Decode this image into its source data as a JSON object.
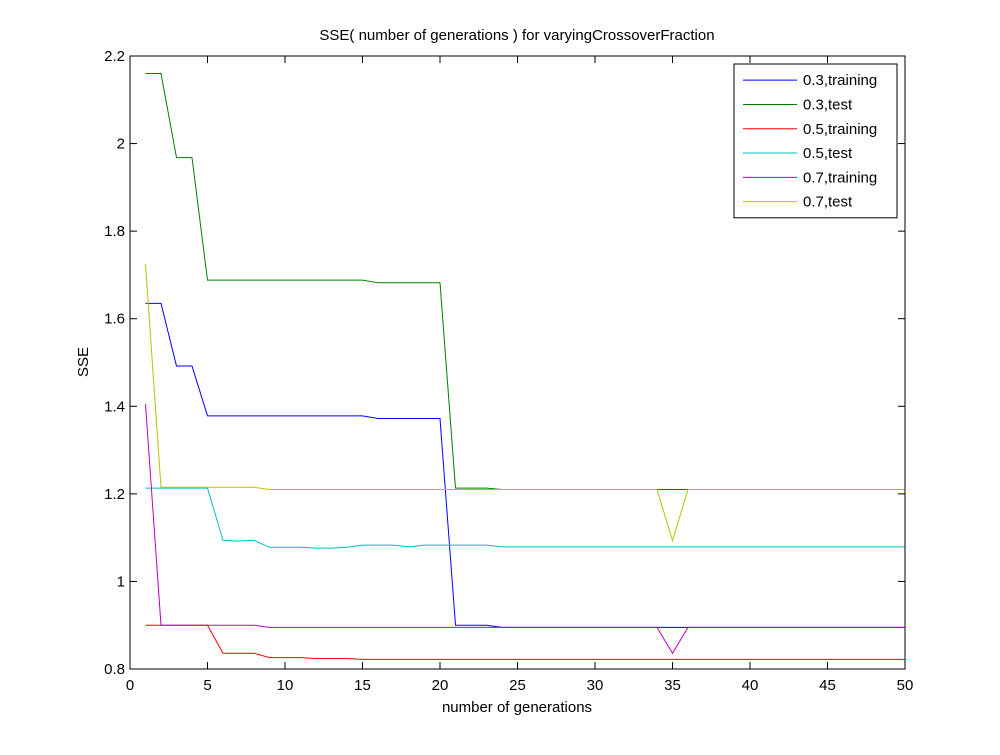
{
  "chart_data": {
    "type": "line",
    "title": "SSE( number of generations ) for varyingCrossoverFraction",
    "xlabel": "number of generations",
    "ylabel": "SSE",
    "xlim": [
      0,
      50
    ],
    "ylim": [
      0.8,
      2.2
    ],
    "xticks": [
      0,
      5,
      10,
      15,
      20,
      25,
      30,
      35,
      40,
      45,
      50
    ],
    "yticks": [
      0.8,
      1,
      1.2,
      1.4,
      1.6,
      1.8,
      2,
      2.2
    ],
    "xtick_labels": [
      "0",
      "5",
      "10",
      "15",
      "20",
      "25",
      "30",
      "35",
      "40",
      "45",
      "50"
    ],
    "ytick_labels": [
      "0.8",
      "1",
      "1.2",
      "1.4",
      "1.6",
      "1.8",
      "2",
      "2.2"
    ],
    "grid": false,
    "legend_position": "top-right",
    "series": [
      {
        "name": "0.3,training",
        "color": "#0000ff",
        "points": [
          [
            1,
            1.635
          ],
          [
            2,
            1.635
          ],
          [
            3,
            1.492
          ],
          [
            4,
            1.492
          ],
          [
            5,
            1.378
          ],
          [
            6,
            1.378
          ],
          [
            7,
            1.378
          ],
          [
            8,
            1.378
          ],
          [
            9,
            1.378
          ],
          [
            10,
            1.378
          ],
          [
            11,
            1.378
          ],
          [
            12,
            1.378
          ],
          [
            13,
            1.378
          ],
          [
            14,
            1.378
          ],
          [
            15,
            1.378
          ],
          [
            16,
            1.372
          ],
          [
            17,
            1.372
          ],
          [
            18,
            1.372
          ],
          [
            19,
            1.372
          ],
          [
            20,
            1.372
          ],
          [
            21,
            0.9
          ],
          [
            22,
            0.9
          ],
          [
            23,
            0.9
          ],
          [
            24,
            0.895
          ],
          [
            50,
            0.895
          ]
        ]
      },
      {
        "name": "0.3,test",
        "color": "#008000",
        "points": [
          [
            1,
            2.16
          ],
          [
            2,
            2.16
          ],
          [
            3,
            1.968
          ],
          [
            4,
            1.968
          ],
          [
            5,
            1.688
          ],
          [
            6,
            1.688
          ],
          [
            7,
            1.688
          ],
          [
            8,
            1.688
          ],
          [
            9,
            1.688
          ],
          [
            10,
            1.688
          ],
          [
            11,
            1.688
          ],
          [
            12,
            1.688
          ],
          [
            13,
            1.688
          ],
          [
            14,
            1.688
          ],
          [
            15,
            1.688
          ],
          [
            16,
            1.682
          ],
          [
            17,
            1.682
          ],
          [
            18,
            1.682
          ],
          [
            19,
            1.682
          ],
          [
            20,
            1.682
          ],
          [
            21,
            1.213
          ],
          [
            22,
            1.213
          ],
          [
            23,
            1.213
          ],
          [
            24,
            1.21
          ],
          [
            50,
            1.21
          ]
        ]
      },
      {
        "name": "0.5,training",
        "color": "#ff0000",
        "points": [
          [
            1,
            0.9
          ],
          [
            2,
            0.9
          ],
          [
            3,
            0.9
          ],
          [
            4,
            0.9
          ],
          [
            5,
            0.9
          ],
          [
            6,
            0.836
          ],
          [
            7,
            0.836
          ],
          [
            8,
            0.836
          ],
          [
            9,
            0.826
          ],
          [
            10,
            0.826
          ],
          [
            11,
            0.826
          ],
          [
            12,
            0.824
          ],
          [
            13,
            0.824
          ],
          [
            14,
            0.824
          ],
          [
            15,
            0.822
          ],
          [
            50,
            0.822
          ]
        ]
      },
      {
        "name": "0.5,test",
        "color": "#00bfbf",
        "points": [
          [
            1,
            1.213
          ],
          [
            2,
            1.213
          ],
          [
            3,
            1.213
          ],
          [
            4,
            1.213
          ],
          [
            5,
            1.213
          ],
          [
            6,
            1.094
          ],
          [
            7,
            1.092
          ],
          [
            8,
            1.094
          ],
          [
            9,
            1.078
          ],
          [
            10,
            1.078
          ],
          [
            11,
            1.078
          ],
          [
            12,
            1.076
          ],
          [
            13,
            1.076
          ],
          [
            14,
            1.078
          ],
          [
            15,
            1.083
          ],
          [
            16,
            1.083
          ],
          [
            17,
            1.083
          ],
          [
            18,
            1.079
          ],
          [
            19,
            1.083
          ],
          [
            20,
            1.083
          ],
          [
            21,
            1.083
          ],
          [
            22,
            1.083
          ],
          [
            23,
            1.083
          ],
          [
            24,
            1.079
          ],
          [
            50,
            1.079
          ]
        ]
      },
      {
        "name": "0.7,training",
        "color": "#bf00bf",
        "points": [
          [
            1,
            1.405
          ],
          [
            2,
            0.9
          ],
          [
            3,
            0.9
          ],
          [
            4,
            0.9
          ],
          [
            5,
            0.9
          ],
          [
            6,
            0.9
          ],
          [
            7,
            0.9
          ],
          [
            8,
            0.9
          ],
          [
            9,
            0.895
          ],
          [
            34,
            0.895
          ],
          [
            35,
            0.836
          ],
          [
            36,
            0.895
          ],
          [
            50,
            0.895
          ]
        ]
      },
      {
        "name": "0.7,test",
        "color": "#bfbf00",
        "points": [
          [
            1,
            1.725
          ],
          [
            2,
            1.215
          ],
          [
            3,
            1.215
          ],
          [
            4,
            1.215
          ],
          [
            5,
            1.215
          ],
          [
            6,
            1.215
          ],
          [
            7,
            1.215
          ],
          [
            8,
            1.215
          ],
          [
            9,
            1.21
          ],
          [
            34,
            1.21
          ],
          [
            35,
            1.093
          ],
          [
            36,
            1.21
          ],
          [
            50,
            1.21
          ]
        ]
      }
    ]
  }
}
